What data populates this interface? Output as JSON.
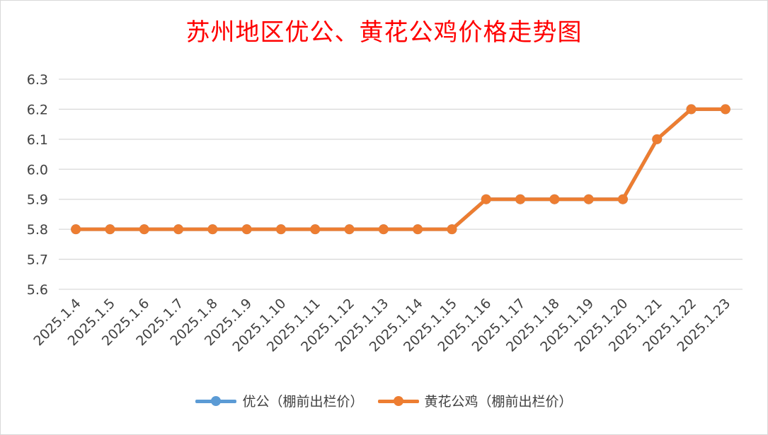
{
  "chart_data": {
    "type": "line",
    "title": "苏州地区优公、黄花公鸡价格走势图",
    "xlabel": "",
    "ylabel": "",
    "categories": [
      "2025.1.4",
      "2025.1.5",
      "2025.1.6",
      "2025.1.7",
      "2025.1.8",
      "2025.1.9",
      "2025.1.10",
      "2025.1.11",
      "2025.1.12",
      "2025.1.13",
      "2025.1.14",
      "2025.1.15",
      "2025.1.16",
      "2025.1.17",
      "2025.1.18",
      "2025.1.19",
      "2025.1.20",
      "2025.1.21",
      "2025.1.22",
      "2025.1.23"
    ],
    "ylim": [
      5.6,
      6.3
    ],
    "yticks": [
      "5.6",
      "5.7",
      "5.8",
      "5.9",
      "6.0",
      "6.1",
      "6.2",
      "6.3"
    ],
    "grid": true,
    "legend_position": "bottom",
    "series": [
      {
        "name": "优公（棚前出栏价）",
        "color": "#5b9bd5",
        "values": [
          5.8,
          5.8,
          5.8,
          5.8,
          5.8,
          5.8,
          5.8,
          5.8,
          5.8,
          5.8,
          5.8,
          5.8,
          5.9,
          5.9,
          5.9,
          5.9,
          5.9,
          6.1,
          6.2,
          6.2
        ]
      },
      {
        "name": "黄花公鸡（棚前出栏价）",
        "color": "#ed7d31",
        "values": [
          5.8,
          5.8,
          5.8,
          5.8,
          5.8,
          5.8,
          5.8,
          5.8,
          5.8,
          5.8,
          5.8,
          5.8,
          5.9,
          5.9,
          5.9,
          5.9,
          5.9,
          6.1,
          6.2,
          6.2
        ]
      }
    ]
  }
}
